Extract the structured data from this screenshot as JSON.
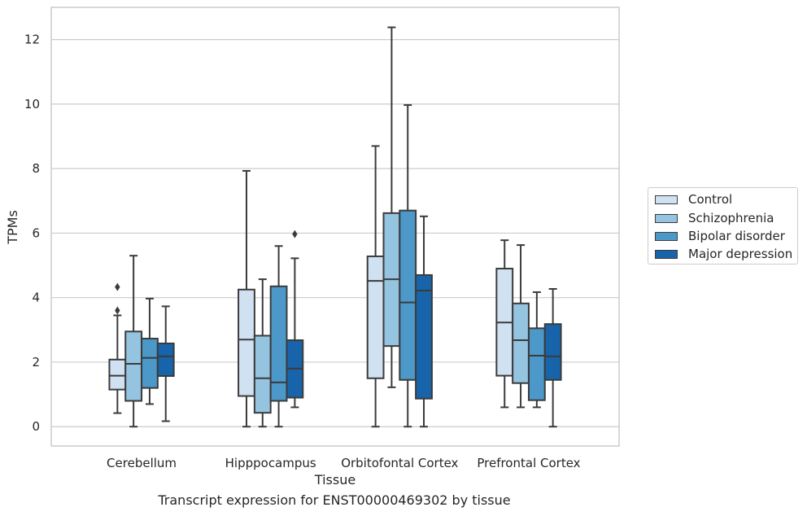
{
  "chart_data": {
    "type": "box",
    "title": "",
    "caption": "Transcript expression for ENST00000469302 by tissue",
    "xlabel": "Tissue",
    "ylabel": "TPMs",
    "ylim": [
      -0.6,
      13.0
    ],
    "yticks": [
      0,
      2,
      4,
      6,
      8,
      10,
      12
    ],
    "grid": "horizontal",
    "legend_position": "right",
    "categories": [
      "Cerebellum",
      "Hipppocampus",
      "Orbitofontal Cortex",
      "Prefrontal Cortex"
    ],
    "series": [
      {
        "name": "Control",
        "color": "#d0e1f2",
        "boxes": [
          {
            "whislo": 0.42,
            "q1": 1.15,
            "med": 1.58,
            "q3": 2.08,
            "whishi": 3.45,
            "fliers": [
              3.6,
              4.33
            ]
          },
          {
            "whislo": 0.0,
            "q1": 0.95,
            "med": 2.7,
            "q3": 4.25,
            "whishi": 7.93,
            "fliers": []
          },
          {
            "whislo": 0.0,
            "q1": 1.5,
            "med": 4.52,
            "q3": 5.28,
            "whishi": 8.7,
            "fliers": []
          },
          {
            "whislo": 0.6,
            "q1": 1.58,
            "med": 3.23,
            "q3": 4.9,
            "whishi": 5.78,
            "fliers": []
          }
        ]
      },
      {
        "name": "Schizophrenia",
        "color": "#94c4df",
        "boxes": [
          {
            "whislo": 0.0,
            "q1": 0.8,
            "med": 1.95,
            "q3": 2.95,
            "whishi": 5.3,
            "fliers": []
          },
          {
            "whislo": 0.0,
            "q1": 0.43,
            "med": 1.5,
            "q3": 2.82,
            "whishi": 4.57,
            "fliers": []
          },
          {
            "whislo": 1.22,
            "q1": 2.5,
            "med": 4.57,
            "q3": 6.62,
            "whishi": 12.38,
            "fliers": []
          },
          {
            "whislo": 0.6,
            "q1": 1.35,
            "med": 2.68,
            "q3": 3.82,
            "whishi": 5.63,
            "fliers": []
          }
        ]
      },
      {
        "name": "Bipolar disorder",
        "color": "#4b98c9",
        "boxes": [
          {
            "whislo": 0.7,
            "q1": 1.2,
            "med": 2.13,
            "q3": 2.73,
            "whishi": 3.97,
            "fliers": []
          },
          {
            "whislo": 0.0,
            "q1": 0.8,
            "med": 1.37,
            "q3": 4.35,
            "whishi": 5.6,
            "fliers": []
          },
          {
            "whislo": 0.0,
            "q1": 1.45,
            "med": 3.85,
            "q3": 6.7,
            "whishi": 9.97,
            "fliers": []
          },
          {
            "whislo": 0.6,
            "q1": 0.82,
            "med": 2.2,
            "q3": 3.05,
            "whishi": 4.17,
            "fliers": []
          }
        ]
      },
      {
        "name": "Major depression",
        "color": "#1764ab",
        "boxes": [
          {
            "whislo": 0.17,
            "q1": 1.57,
            "med": 2.18,
            "q3": 2.58,
            "whishi": 3.73,
            "fliers": []
          },
          {
            "whislo": 0.6,
            "q1": 0.9,
            "med": 1.8,
            "q3": 2.68,
            "whishi": 5.22,
            "fliers": [
              5.97
            ]
          },
          {
            "whislo": 0.0,
            "q1": 0.87,
            "med": 4.22,
            "q3": 4.7,
            "whishi": 6.52,
            "fliers": []
          },
          {
            "whislo": 0.0,
            "q1": 1.45,
            "med": 2.18,
            "q3": 3.18,
            "whishi": 4.27,
            "fliers": []
          }
        ]
      }
    ]
  }
}
